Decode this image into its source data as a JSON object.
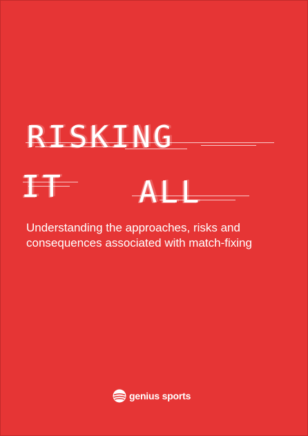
{
  "title": {
    "line1": "RISKING",
    "line2a": "IT",
    "line2b": "ALL"
  },
  "subtitle": "Understanding the approaches, risks and consequences associated with match-fixing",
  "logo": {
    "text": "genius sports",
    "icon": "genius-sports-logo-icon"
  },
  "colors": {
    "background": "#e63535",
    "text": "#ffffff"
  }
}
